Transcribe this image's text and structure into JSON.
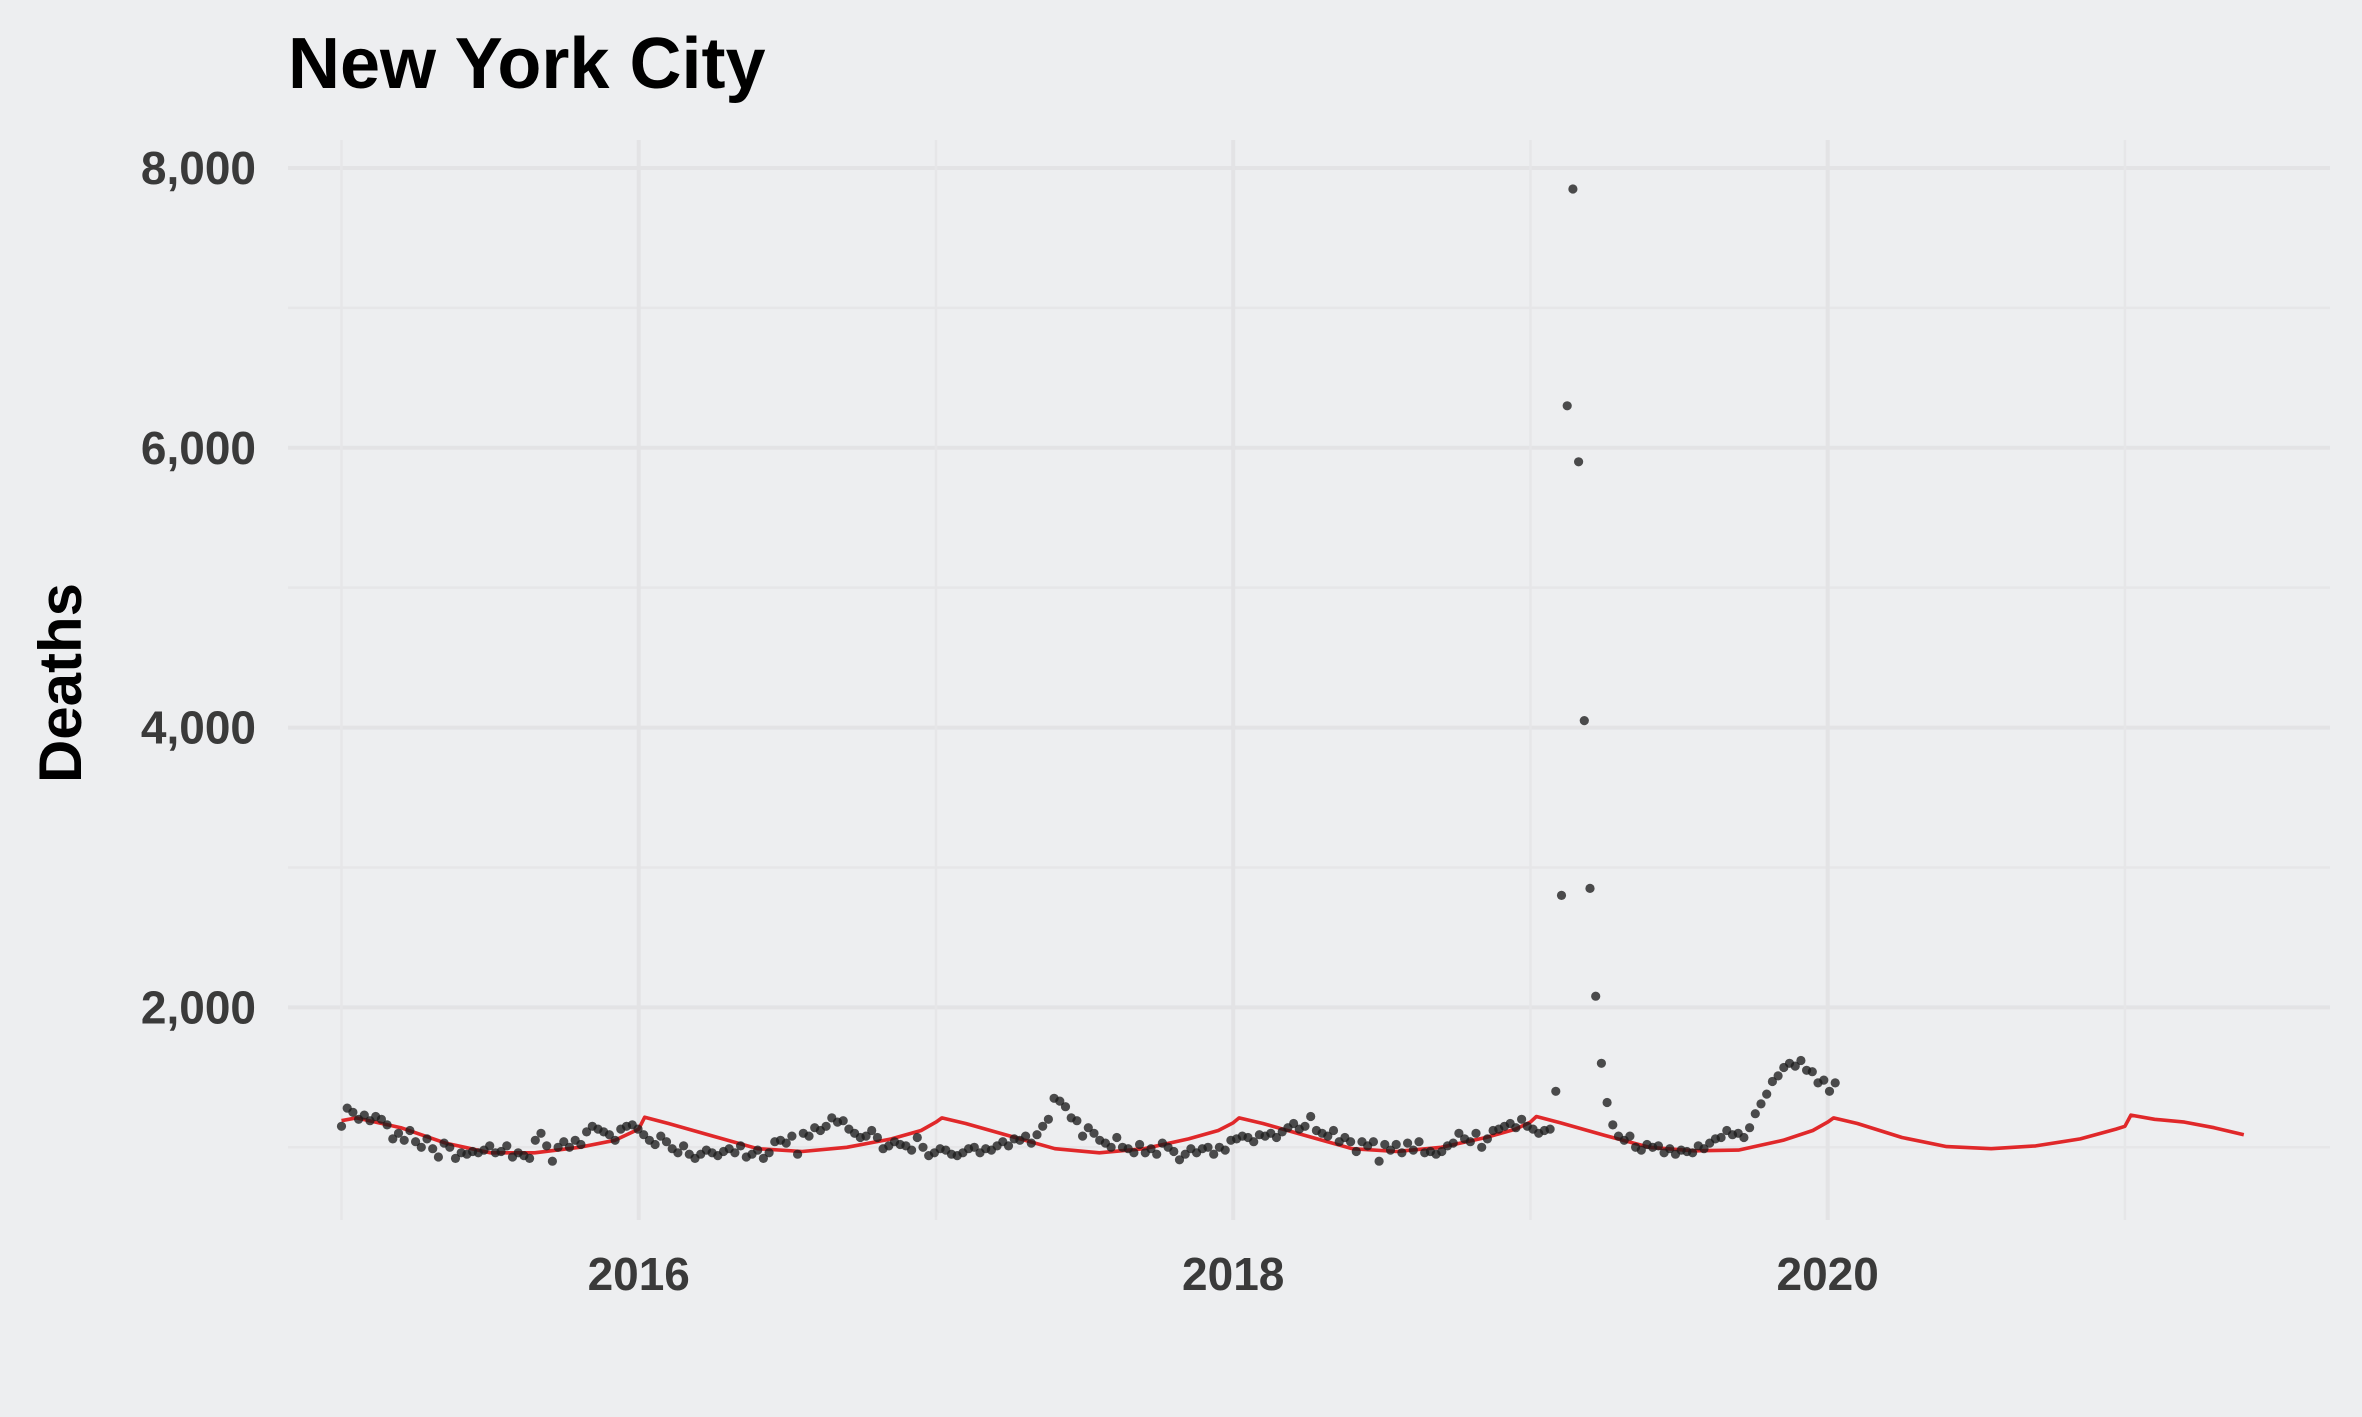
{
  "chart_data": {
    "type": "scatter",
    "title": "New York City",
    "ylabel": "Deaths",
    "xlabel": "",
    "xlim": [
      2014.82,
      2021.69
    ],
    "ylim": [
      480,
      8200
    ],
    "x_ticks": [
      2016,
      2018,
      2020
    ],
    "x_tick_labels": [
      "2016",
      "2018",
      "2020"
    ],
    "y_ticks": [
      2000,
      4000,
      6000,
      8000
    ],
    "y_tick_labels": [
      "2,000",
      "4,000",
      "6,000",
      "8,000"
    ],
    "grid": true,
    "legend": "none",
    "colors": {
      "points": "#1c1c1c",
      "trend": "#e0282a",
      "background": "#edeef0"
    },
    "x_start_year": 2015.0,
    "week_step": 0.01918,
    "weekly_deaths": [
      1150,
      1280,
      1250,
      1200,
      1230,
      1190,
      1220,
      1200,
      1160,
      1060,
      1100,
      1050,
      1120,
      1040,
      1000,
      1060,
      990,
      930,
      1030,
      1000,
      920,
      960,
      950,
      970,
      960,
      980,
      1010,
      960,
      970,
      1010,
      930,
      960,
      940,
      920,
      1050,
      1100,
      1010,
      900,
      1000,
      1040,
      1000,
      1050,
      1020,
      1110,
      1150,
      1130,
      1110,
      1090,
      1050,
      1130,
      1150,
      1160,
      1130,
      1090,
      1050,
      1020,
      1080,
      1040,
      990,
      960,
      1010,
      950,
      920,
      950,
      980,
      960,
      940,
      970,
      990,
      960,
      1010,
      930,
      950,
      980,
      920,
      960,
      1040,
      1050,
      1030,
      1080,
      950,
      1100,
      1080,
      1140,
      1120,
      1150,
      1210,
      1180,
      1190,
      1130,
      1100,
      1070,
      1080,
      1120,
      1070,
      990,
      1010,
      1040,
      1020,
      1010,
      980,
      1070,
      1000,
      940,
      960,
      990,
      980,
      950,
      940,
      960,
      990,
      1000,
      960,
      990,
      980,
      1010,
      1040,
      1010,
      1060,
      1050,
      1080,
      1030,
      1090,
      1150,
      1200,
      1350,
      1330,
      1290,
      1210,
      1190,
      1080,
      1140,
      1100,
      1050,
      1030,
      1000,
      1070,
      1000,
      990,
      960,
      1020,
      960,
      990,
      950,
      1030,
      1000,
      970,
      910,
      950,
      990,
      960,
      990,
      1000,
      950,
      1000,
      980,
      1050,
      1060,
      1080,
      1070,
      1040,
      1090,
      1080,
      1100,
      1070,
      1110,
      1140,
      1170,
      1130,
      1150,
      1220,
      1120,
      1100,
      1080,
      1120,
      1040,
      1070,
      1040,
      970,
      1040,
      1010,
      1040,
      900,
      1020,
      980,
      1020,
      960,
      1030,
      980,
      1040,
      960,
      970,
      950,
      970,
      1010,
      1030,
      1100,
      1060,
      1040,
      1100,
      1000,
      1060,
      1120,
      1130,
      1150,
      1170,
      1140,
      1200,
      1150,
      1130,
      1100,
      1120,
      1130,
      1400,
      2800,
      6300,
      7850,
      5900,
      4050,
      2850,
      2080,
      1600,
      1320,
      1160,
      1080,
      1050,
      1080,
      1000,
      980,
      1020,
      1000,
      1010,
      960,
      990,
      950,
      980,
      970,
      960,
      1010,
      990,
      1030,
      1060,
      1070,
      1120,
      1090,
      1100,
      1070,
      1140,
      1240,
      1310,
      1380,
      1470,
      1510,
      1570,
      1600,
      1580,
      1620,
      1550,
      1540,
      1460,
      1480,
      1400,
      1460
    ],
    "trend_x": [
      2015.0,
      2015.05,
      2015.2,
      2015.35,
      2015.5,
      2015.65,
      2015.8,
      2015.92,
      2016.0,
      2016.02,
      2016.1,
      2016.25,
      2016.4,
      2016.55,
      2016.7,
      2016.85,
      2016.95,
      2017.0,
      2017.02,
      2017.1,
      2017.25,
      2017.4,
      2017.55,
      2017.7,
      2017.85,
      2017.95,
      2018.0,
      2018.02,
      2018.1,
      2018.25,
      2018.4,
      2018.55,
      2018.7,
      2018.85,
      2018.95,
      2019.0,
      2019.02,
      2019.1,
      2019.25,
      2019.4,
      2019.55,
      2019.7,
      2019.85,
      2019.95,
      2020.0,
      2020.02,
      2020.1,
      2020.25,
      2020.4,
      2020.55,
      2020.7,
      2020.85,
      2020.97,
      2021.0,
      2021.02,
      2021.1,
      2021.2,
      2021.3,
      2021.4
    ],
    "trend_y": [
      1190,
      1210,
      1140,
      1030,
      960,
      960,
      1000,
      1050,
      1130,
      1215,
      1170,
      1080,
      990,
      970,
      1000,
      1060,
      1120,
      1180,
      1210,
      1170,
      1080,
      990,
      960,
      990,
      1060,
      1120,
      1175,
      1210,
      1170,
      1080,
      990,
      970,
      1000,
      1070,
      1130,
      1180,
      1220,
      1175,
      1085,
      1000,
      975,
      980,
      1050,
      1120,
      1180,
      1210,
      1170,
      1070,
      1005,
      990,
      1010,
      1060,
      1130,
      1150,
      1230,
      1200,
      1180,
      1140,
      1090
    ]
  }
}
